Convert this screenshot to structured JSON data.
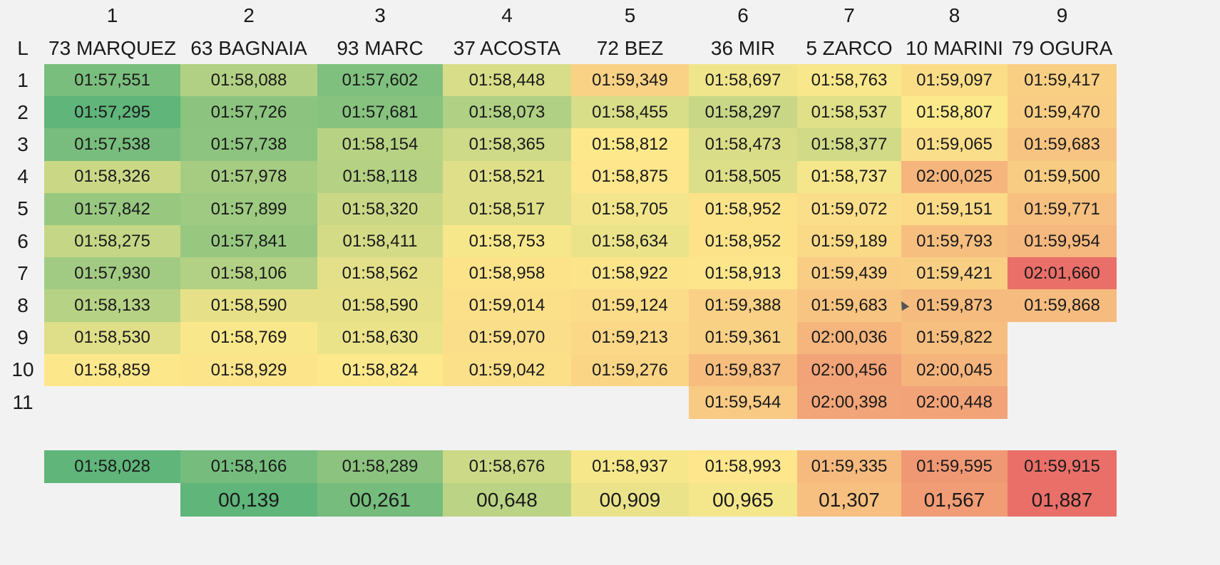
{
  "lap_header": "L",
  "riders": [
    {
      "pos": "1",
      "name": "73 MARQUEZ",
      "laps": [
        "01:57,551",
        "01:57,295",
        "01:57,538",
        "01:58,326",
        "01:57,842",
        "01:58,275",
        "01:57,930",
        "01:58,133",
        "01:58,530",
        "01:58,859"
      ],
      "average": "01:58,028",
      "gap": ""
    },
    {
      "pos": "2",
      "name": "63 BAGNAIA",
      "laps": [
        "01:58,088",
        "01:57,726",
        "01:57,738",
        "01:57,978",
        "01:57,899",
        "01:57,841",
        "01:58,106",
        "01:58,590",
        "01:58,769",
        "01:58,929"
      ],
      "average": "01:58,166",
      "gap": "00,139"
    },
    {
      "pos": "3",
      "name": "93 MARC",
      "laps": [
        "01:57,602",
        "01:57,681",
        "01:58,154",
        "01:58,118",
        "01:58,320",
        "01:58,411",
        "01:58,562",
        "01:58,590",
        "01:58,630",
        "01:58,824"
      ],
      "average": "01:58,289",
      "gap": "00,261"
    },
    {
      "pos": "4",
      "name": "37 ACOSTA",
      "laps": [
        "01:58,448",
        "01:58,073",
        "01:58,365",
        "01:58,521",
        "01:58,517",
        "01:58,753",
        "01:58,958",
        "01:59,014",
        "01:59,070",
        "01:59,042"
      ],
      "average": "01:58,676",
      "gap": "00,648"
    },
    {
      "pos": "5",
      "name": "72 BEZ",
      "laps": [
        "01:59,349",
        "01:58,455",
        "01:58,812",
        "01:58,875",
        "01:58,705",
        "01:58,634",
        "01:58,922",
        "01:59,124",
        "01:59,213",
        "01:59,276"
      ],
      "average": "01:58,937",
      "gap": "00,909"
    },
    {
      "pos": "6",
      "name": "36 MIR",
      "laps": [
        "01:58,697",
        "01:58,297",
        "01:58,473",
        "01:58,505",
        "01:58,952",
        "01:58,952",
        "01:58,913",
        "01:59,388",
        "01:59,361",
        "01:59,837",
        "01:59,544"
      ],
      "average": "01:58,993",
      "gap": "00,965"
    },
    {
      "pos": "7",
      "name": "5 ZARCO",
      "laps": [
        "01:58,763",
        "01:58,537",
        "01:58,377",
        "01:58,737",
        "01:59,072",
        "01:59,189",
        "01:59,439",
        "01:59,683",
        "02:00,036",
        "02:00,456",
        "02:00,398"
      ],
      "average": "01:59,335",
      "gap": "01,307"
    },
    {
      "pos": "8",
      "name": "10 MARINI",
      "laps": [
        "01:59,097",
        "01:58,807",
        "01:59,065",
        "02:00,025",
        "01:59,151",
        "01:59,793",
        "01:59,421",
        "01:59,873",
        "01:59,822",
        "02:00,045",
        "02:00,448"
      ],
      "average": "01:59,595",
      "gap": "01,567"
    },
    {
      "pos": "9",
      "name": "79 OGURA",
      "laps": [
        "01:59,417",
        "01:59,470",
        "01:59,683",
        "01:59,500",
        "01:59,771",
        "01:59,954",
        "02:01,660",
        "01:59,868"
      ],
      "average": "01:59,915",
      "gap": "01,887"
    }
  ],
  "lap_numbers": [
    "1",
    "2",
    "3",
    "4",
    "5",
    "6",
    "7",
    "8",
    "9",
    "10",
    "11"
  ],
  "colors": {
    "background": "#f2f2f2",
    "scale_green": "#5fb57a",
    "scale_yellow": "#fde98c",
    "scale_red": "#ea6f68"
  }
}
